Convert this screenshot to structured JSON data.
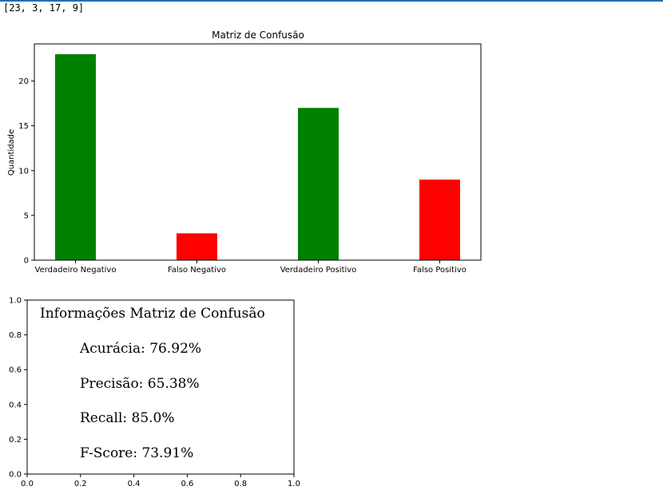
{
  "output": {
    "printed_list": "[23, 3, 17, 9]"
  },
  "chart_data": [
    {
      "type": "bar",
      "title": "Matriz de Confusão",
      "xlabel": "",
      "ylabel": "Quantidade",
      "categories": [
        "Verdadeiro Negativo",
        "Falso Negativo",
        "Verdadeiro Positivo",
        "Falso Positivo"
      ],
      "values": [
        23,
        3,
        17,
        9
      ],
      "colors": [
        "#008000",
        "#ff0000",
        "#008000",
        "#ff0000"
      ],
      "ylim": [
        0,
        24.15
      ],
      "yticks": [
        0,
        5,
        10,
        15,
        20
      ],
      "grid": false
    },
    {
      "type": "text",
      "title": "Informações Matriz de Confusão",
      "lines": [
        "Acurácia: 76.92%",
        "Precisão: 65.38%",
        "Recall: 85.0%",
        "F-Score: 73.91%"
      ],
      "xlim": [
        0,
        1
      ],
      "ylim": [
        0,
        1
      ],
      "xticks": [
        "0.0",
        "0.2",
        "0.4",
        "0.6",
        "0.8",
        "1.0"
      ],
      "yticks": [
        "0.0",
        "0.2",
        "0.4",
        "0.6",
        "0.8",
        "1.0"
      ],
      "grid": false
    }
  ]
}
